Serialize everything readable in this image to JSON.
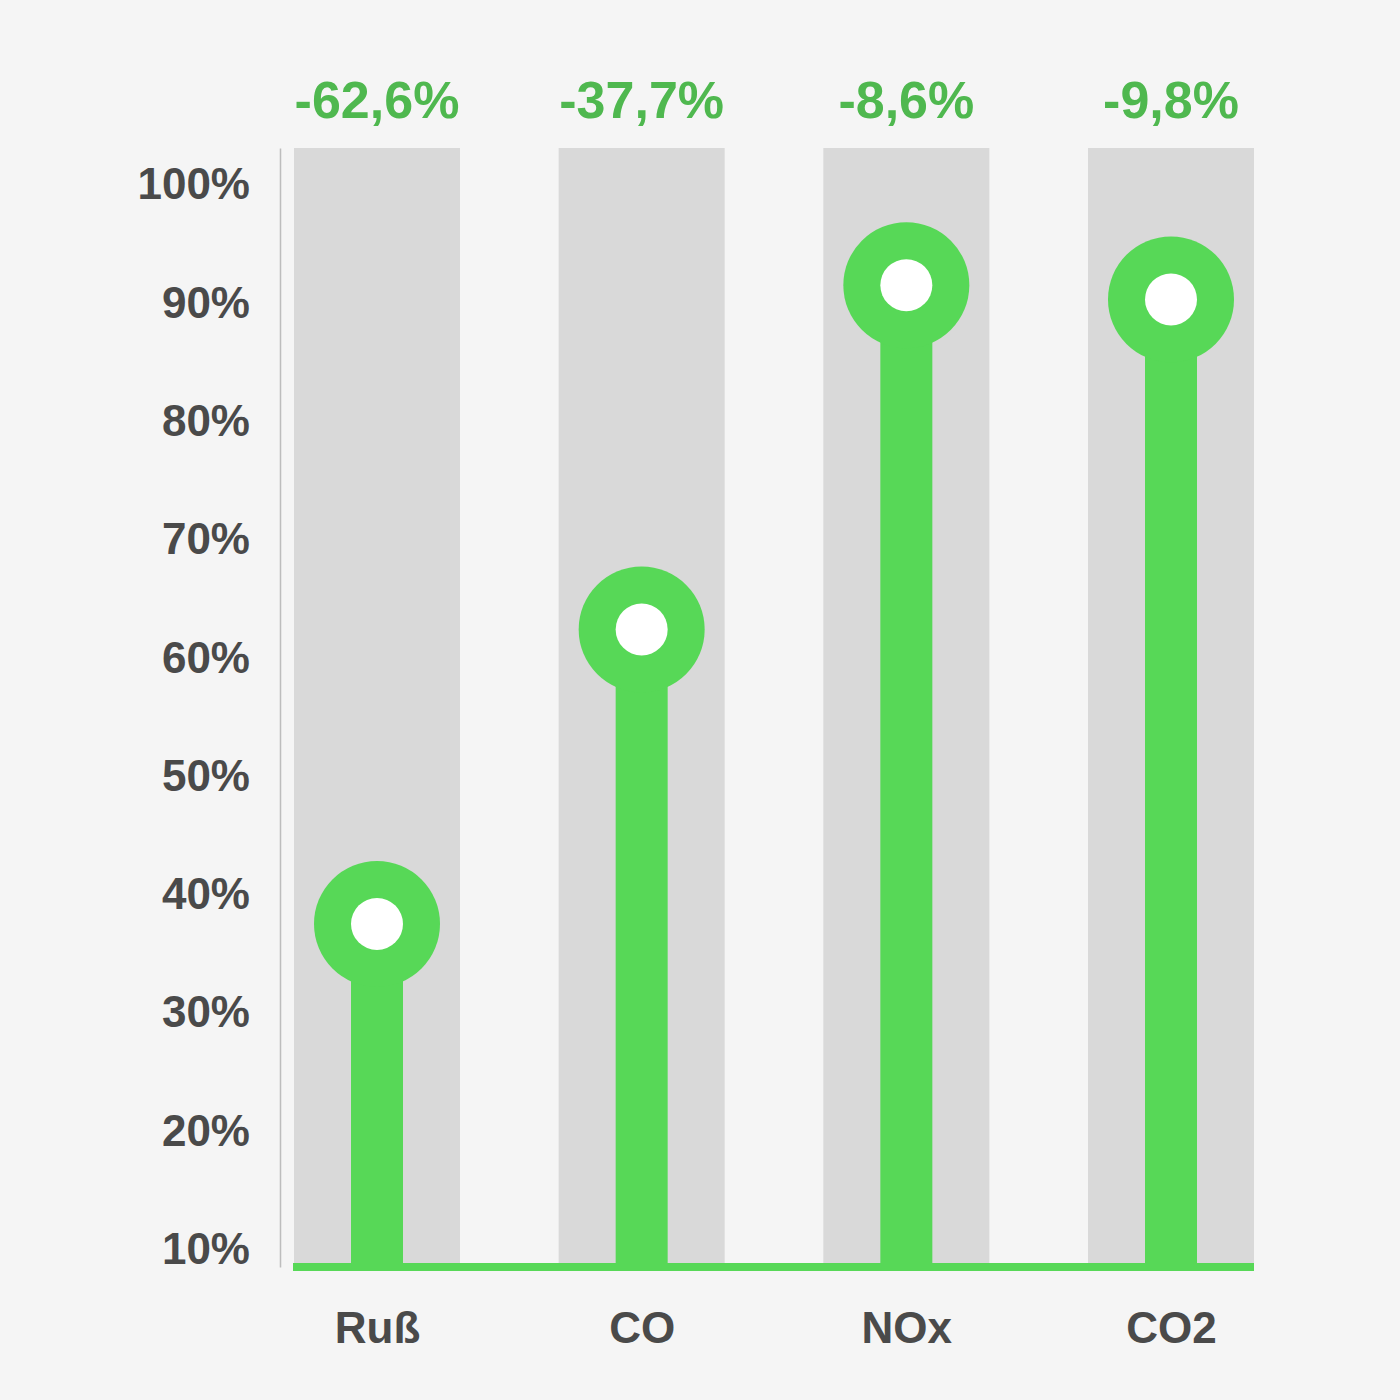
{
  "chart_data": {
    "type": "lollipop",
    "categories": [
      "Ruß",
      "CO",
      "NOx",
      "CO2"
    ],
    "values": [
      37.4,
      62.3,
      91.4,
      90.2
    ],
    "annotations": [
      "-62,6%",
      "-37,7%",
      "-8,6%",
      "-9,8%"
    ],
    "color": "#57d857",
    "ylim": [
      8.4,
      103
    ],
    "yticks": [
      {
        "value": 10,
        "label": "10%"
      },
      {
        "value": 20,
        "label": "20%"
      },
      {
        "value": 30,
        "label": "30%"
      },
      {
        "value": 40,
        "label": "40%"
      },
      {
        "value": 50,
        "label": "50%"
      },
      {
        "value": 60,
        "label": "60%"
      },
      {
        "value": 70,
        "label": "70%"
      },
      {
        "value": 80,
        "label": "80%"
      },
      {
        "value": 90,
        "label": "90%"
      },
      {
        "value": 100,
        "label": "100%"
      }
    ]
  }
}
